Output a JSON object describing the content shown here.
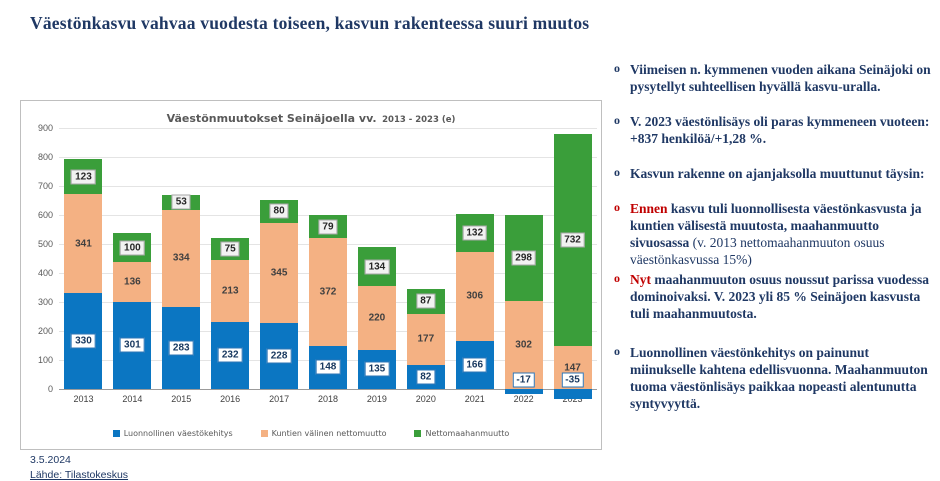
{
  "page": {
    "title": "Väestönkasvu vahvaa vuodesta toiseen, kasvun rakenteessa suuri muutos",
    "date": "3.5.2024",
    "source": "Lähde: Tilastokeskus",
    "colors": {
      "navy": "#1F3864",
      "red": "#C00000"
    }
  },
  "chart_data": {
    "type": "bar",
    "stacked": true,
    "title": "Väestönmuutokset Seinäjoella vv. 2013 - 2023 (e)",
    "title_main": "Väestönmuutokset Seinäjoella vv.",
    "title_sub": "2013 - 2023 (e)",
    "categories": [
      "2013",
      "2014",
      "2015",
      "2016",
      "2017",
      "2018",
      "2019",
      "2020",
      "2021",
      "2022",
      "2023"
    ],
    "series": [
      {
        "name": "Luonnollinen väestökehitys",
        "color": "#0B76C2",
        "values": [
          330,
          301,
          283,
          232,
          228,
          148,
          135,
          82,
          166,
          -17,
          -35
        ]
      },
      {
        "name": "Kuntien välinen nettomuutto",
        "color": "#F4B183",
        "values": [
          341,
          136,
          334,
          213,
          345,
          372,
          220,
          177,
          306,
          302,
          147
        ]
      },
      {
        "name": "Nettomaahanmuutto",
        "color": "#3A9E3A",
        "values": [
          123,
          100,
          53,
          75,
          80,
          79,
          134,
          87,
          132,
          298,
          732
        ]
      }
    ],
    "ylim": [
      -52,
      900
    ],
    "ytick_step": 100,
    "grid": "horizontal",
    "legend_position": "bottom"
  },
  "bullets": {
    "marker_char": "o",
    "items": [
      {
        "text": "Viimeisen n. kymmenen vuoden aikana Seinäjoki on pysytellyt suhteellisen hyvällä kasvu-uralla."
      },
      {
        "text": "V. 2023 väestönlisäys oli paras kymmeneen vuoteen: +837 henkilöä/+1,28 %."
      },
      {
        "text": "Kasvun rakenne on ajanjaksolla muuttunut täysin:"
      },
      {
        "lead": "Ennen",
        "bold": " kasvu tuli luonnollisesta väestönkasvusta ja kuntien välisestä muutosta, maahanmuutto sivuosassa ",
        "normal": "(v. 2013 nettomaahanmuuton osuus väestönkasvussa 15%)"
      },
      {
        "lead": "Nyt",
        "bold": " maahanmuuton osuus noussut parissa vuodessa dominoivaksi. V. 2023 yli 85 % Seinäjoen kasvusta tuli maahanmuutosta."
      },
      {
        "text": "Luonnollinen väestönkehitys on painunut miinukselle kahtena edellisvuonna. Maahanmuuton tuoma väestönlisäys paikkaa nopeasti alentunutta syntyvyyttä."
      }
    ]
  }
}
